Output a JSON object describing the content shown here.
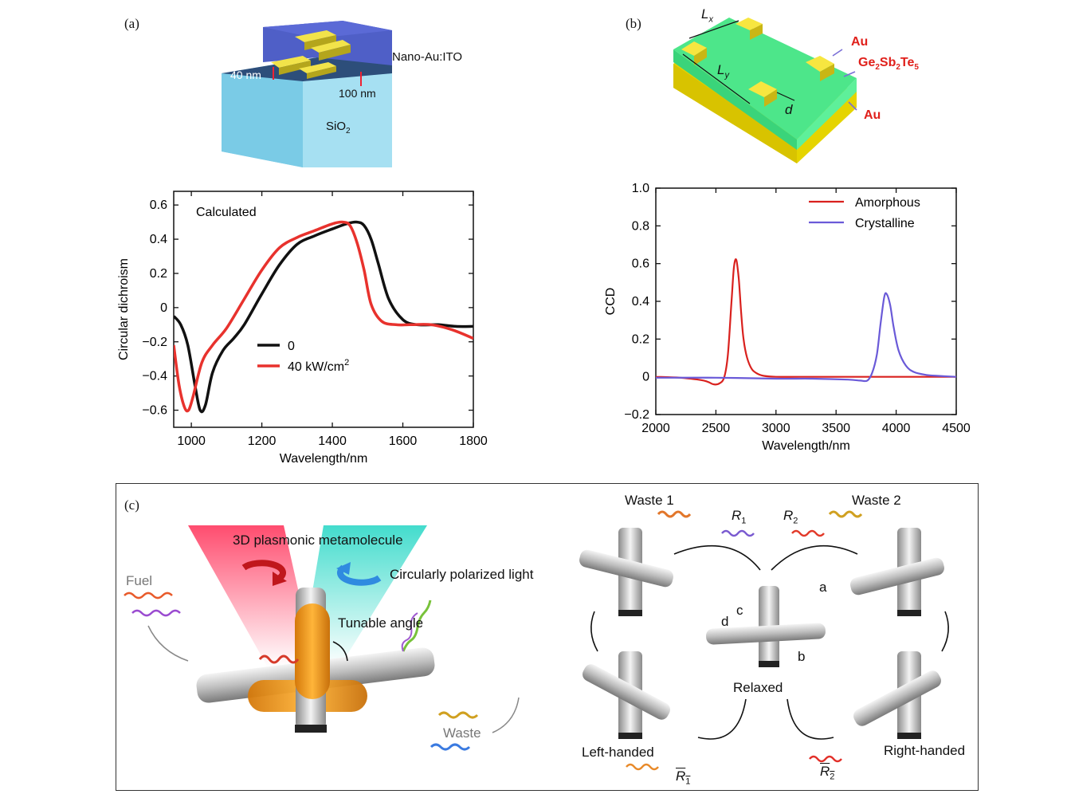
{
  "panel_a": {
    "label": "(a)",
    "schematic": {
      "layer_label": "Nano-Au:ITO",
      "thickness_top": "40 nm",
      "thickness_layer": "100 nm",
      "substrate_prefix": "SiO",
      "substrate_sub": "2"
    }
  },
  "panel_b": {
    "label": "(b)",
    "schematic": {
      "lx_main": "L",
      "lx_sub": "x",
      "ly_main": "L",
      "ly_sub": "y",
      "d_label": "d",
      "au_top": "Au",
      "gst_parts": [
        "Ge",
        "2",
        "Sb",
        "2",
        "Te",
        "5"
      ],
      "au_bottom": "Au"
    }
  },
  "panel_c": {
    "label": "(c)",
    "left": {
      "title": "3D plasmonic metamolecule",
      "light": "Circularly polarized light",
      "angle": "Tunable angle",
      "fuel": "Fuel",
      "waste": "Waste"
    },
    "cycle": {
      "waste1": "Waste 1",
      "waste2": "Waste 2",
      "r1": "R",
      "r1_sub": "1",
      "r2": "R",
      "r2_sub": "2",
      "rb1": "R",
      "rb1_sub": "1",
      "rb2": "R",
      "rb2_sub": "2",
      "relaxed": "Relaxed",
      "left_handed": "Left-handed",
      "right_handed": "Right-handed",
      "a": "a",
      "b": "b",
      "c": "c",
      "d": "d"
    }
  },
  "colors": {
    "black_series": "#111111",
    "red_series": "#e8322d",
    "blue_series": "#6a5ad8",
    "amorphous": "#d9211e",
    "au_label": "#e0201b",
    "arrow_purple": "#7a6fd6"
  },
  "chart_data": [
    {
      "id": "a",
      "type": "line",
      "title": "",
      "annotation": "Calculated",
      "xlabel": "Wavelength/nm",
      "ylabel": "Circular dichroism",
      "xlim": [
        950,
        1800
      ],
      "ylim": [
        -0.7,
        0.68
      ],
      "xticks": [
        1000,
        1200,
        1400,
        1600,
        1800
      ],
      "xtick_labels": [
        "1000",
        "1200",
        "1400",
        "1600",
        "1800"
      ],
      "yticks": [
        0.6,
        0.4,
        0.2,
        0,
        -0.2,
        -0.4,
        -0.6
      ],
      "ytick_labels": [
        "0.6",
        "0.4",
        "0.2",
        "0",
        "−0.2",
        "−0.4",
        "−0.6"
      ],
      "legend": {
        "placement": "lower-center",
        "entries": [
          "0",
          "40 kW/cm"
        ],
        "superscript_2": "2"
      },
      "series": [
        {
          "name": "0",
          "color": "#111111",
          "x": [
            950,
            970,
            990,
            1010,
            1025,
            1040,
            1060,
            1090,
            1120,
            1150,
            1200,
            1250,
            1300,
            1350,
            1400,
            1440,
            1470,
            1490,
            1510,
            1530,
            1560,
            1600,
            1640,
            1700,
            1750,
            1800
          ],
          "y": [
            -0.05,
            -0.1,
            -0.22,
            -0.45,
            -0.6,
            -0.57,
            -0.38,
            -0.25,
            -0.18,
            -0.1,
            0.08,
            0.25,
            0.37,
            0.42,
            0.46,
            0.49,
            0.5,
            0.48,
            0.4,
            0.26,
            0.05,
            -0.07,
            -0.1,
            -0.1,
            -0.11,
            -0.11
          ]
        },
        {
          "name": "40 kW/cm2",
          "color": "#e8322d",
          "x": [
            950,
            965,
            980,
            992,
            1005,
            1030,
            1060,
            1100,
            1150,
            1200,
            1250,
            1300,
            1350,
            1400,
            1430,
            1450,
            1470,
            1490,
            1510,
            1540,
            1580,
            1620,
            1680,
            1740,
            1800
          ],
          "y": [
            -0.22,
            -0.45,
            -0.58,
            -0.6,
            -0.52,
            -0.32,
            -0.22,
            -0.12,
            0.05,
            0.22,
            0.35,
            0.41,
            0.45,
            0.49,
            0.5,
            0.48,
            0.38,
            0.22,
            0.02,
            -0.08,
            -0.1,
            -0.1,
            -0.1,
            -0.13,
            -0.18
          ]
        }
      ]
    },
    {
      "id": "b",
      "type": "line",
      "title": "",
      "xlabel": "Wavelength/nm",
      "ylabel": "CCD",
      "xlim": [
        2000,
        4500
      ],
      "ylim": [
        -0.2,
        1.0
      ],
      "xticks": [
        2000,
        2500,
        3000,
        3500,
        4000,
        4500
      ],
      "xtick_labels": [
        "2000",
        "2500",
        "3000",
        "3500",
        "4000",
        "4500"
      ],
      "yticks": [
        1.0,
        0.8,
        0.6,
        0.4,
        0.2,
        0,
        -0.2
      ],
      "ytick_labels": [
        "1.0",
        "0.8",
        "0.6",
        "0.4",
        "0.2",
        "0",
        "−0.2"
      ],
      "legend": {
        "placement": "top-right",
        "entries": [
          "Amorphous",
          "Crystalline"
        ]
      },
      "series": [
        {
          "name": "Amorphous",
          "color": "#d9211e",
          "x": [
            2000,
            2200,
            2400,
            2480,
            2530,
            2570,
            2600,
            2630,
            2650,
            2670,
            2690,
            2710,
            2730,
            2760,
            2800,
            2850,
            2900,
            3000,
            3200,
            3500,
            4000,
            4500
          ],
          "y": [
            0,
            -0.005,
            -0.02,
            -0.04,
            -0.035,
            0.0,
            0.12,
            0.4,
            0.58,
            0.62,
            0.52,
            0.34,
            0.2,
            0.1,
            0.04,
            0.015,
            0.005,
            0.0,
            0.0,
            0.0,
            0.0,
            0.0
          ]
        },
        {
          "name": "Crystalline",
          "color": "#6a5ad8",
          "x": [
            2000,
            2500,
            3000,
            3300,
            3600,
            3700,
            3760,
            3800,
            3840,
            3870,
            3900,
            3920,
            3950,
            3980,
            4020,
            4080,
            4150,
            4250,
            4350,
            4500
          ],
          "y": [
            -0.005,
            -0.005,
            -0.01,
            -0.01,
            -0.015,
            -0.02,
            -0.02,
            0.02,
            0.12,
            0.28,
            0.42,
            0.44,
            0.38,
            0.26,
            0.14,
            0.06,
            0.025,
            0.01,
            0.005,
            0.0
          ]
        }
      ]
    }
  ]
}
